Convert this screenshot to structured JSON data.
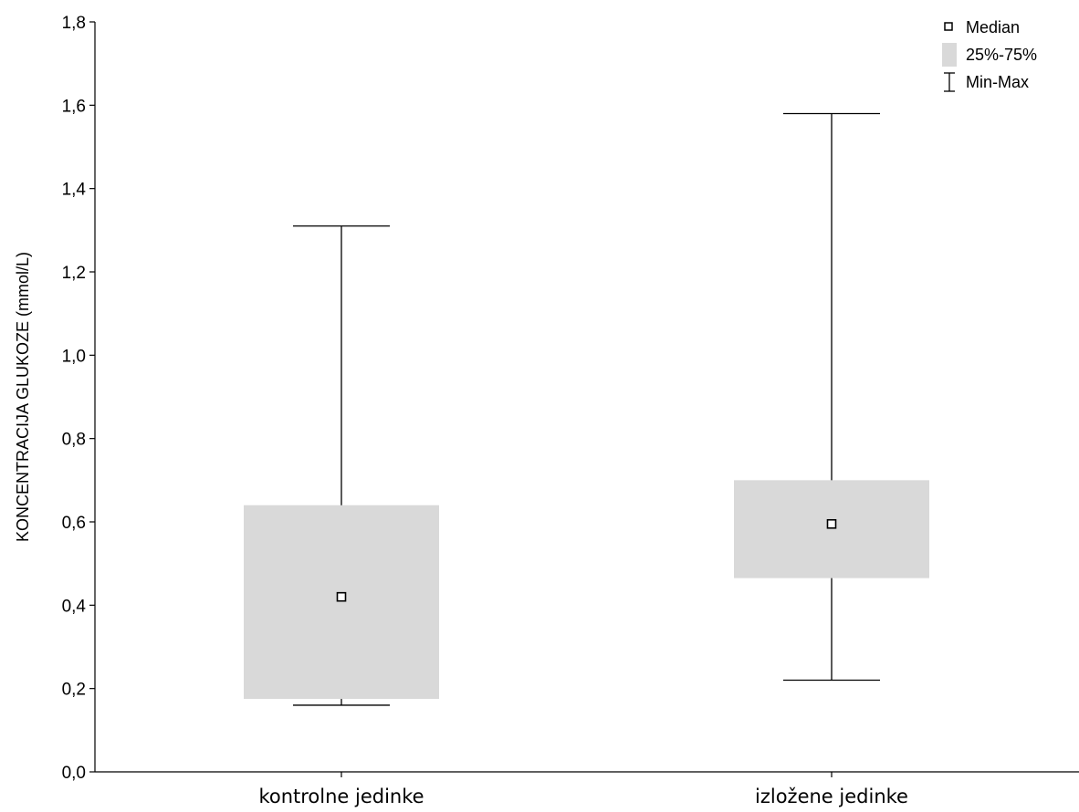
{
  "chart_data": {
    "type": "box",
    "ylabel": "KONCENTRACIJA GLUKOZE (mmol/L)",
    "xlabel": "",
    "ylim": [
      0.0,
      1.8
    ],
    "yticks": [
      0.0,
      0.2,
      0.4,
      0.6,
      0.8,
      1.0,
      1.2,
      1.4,
      1.6,
      1.8
    ],
    "ytick_labels": [
      "0,0",
      "0,2",
      "0,4",
      "0,6",
      "0,8",
      "1,0",
      "1,2",
      "1,4",
      "1,6",
      "1,8"
    ],
    "categories": [
      "kontrolne jedinke",
      "izložene jedinke"
    ],
    "groups": [
      {
        "category": "kontrolne jedinke",
        "min": 0.16,
        "q1": 0.175,
        "median": 0.42,
        "q3": 0.64,
        "max": 1.31
      },
      {
        "category": "izložene jedinke",
        "min": 0.22,
        "q1": 0.465,
        "median": 0.595,
        "q3": 0.7,
        "max": 1.58
      }
    ],
    "legend": {
      "position": "top-right",
      "items": [
        {
          "symbol": "square-marker",
          "label": "Median"
        },
        {
          "symbol": "filled-box",
          "label": "25%-75%"
        },
        {
          "symbol": "whisker",
          "label": "Min-Max"
        }
      ]
    },
    "colors": {
      "box_fill": "#d9d9d9",
      "line": "#000000"
    },
    "grid": false
  }
}
